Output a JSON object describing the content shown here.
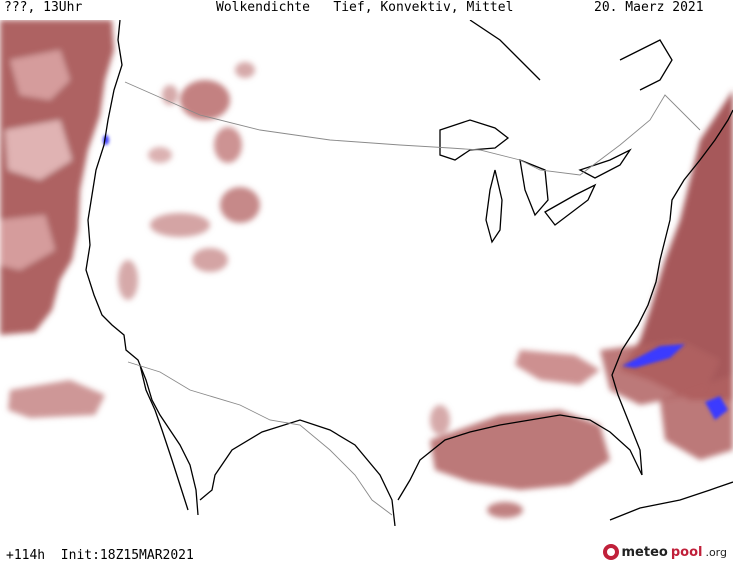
{
  "header": {
    "left": "???, 13Uhr",
    "title": "Wolkendichte   Tief, Konvektiv, Mittel",
    "date": "20. Maerz 2021"
  },
  "footer": {
    "run_info": "+114h  Init:18Z15MAR2021",
    "logo_part1": "meteo",
    "logo_part2": "pool",
    "logo_part3": ".org"
  },
  "colors": {
    "cloud_dark": "#8e3a3c",
    "cloud_mid": "#b86b6b",
    "cloud_light": "#d9a3a3",
    "convective": "#3a3aff",
    "coast": "#000000",
    "border": "#888888"
  }
}
